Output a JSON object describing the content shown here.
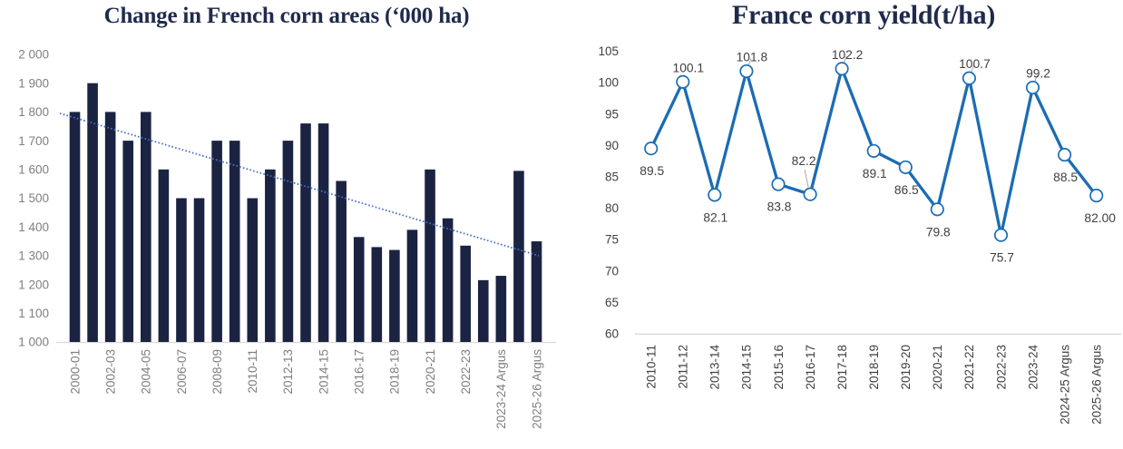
{
  "page": {
    "background": "#ffffff"
  },
  "chart_data": [
    {
      "type": "bar",
      "title": "Change in French corn areas (‘000 ha)",
      "values": [
        1800,
        1900,
        1800,
        1700,
        1800,
        1600,
        1500,
        1500,
        1700,
        1700,
        1500,
        1600,
        1700,
        1760,
        1760,
        1560,
        1365,
        1330,
        1320,
        1390,
        1600,
        1430,
        1335,
        1215,
        1230,
        1595,
        1350
      ],
      "x_tick_labels": [
        "2000-01",
        "2002-03",
        "2004-05",
        "2006-07",
        "2008-09",
        "2010-11",
        "2012-13",
        "2014-15",
        "2016-17",
        "2018-19",
        "2020-21",
        "2022-23",
        "2023-24 Argus",
        "2025-26 Argus"
      ],
      "x_tick_every": 2,
      "ylim": [
        1000,
        2000
      ],
      "ytick_step": 100,
      "y_tick_labels": [
        "2 000",
        "1 900",
        "1 800",
        "1 700",
        "1 600",
        "1 500",
        "1 400",
        "1 300",
        "1 200",
        "1 100",
        "1 000"
      ],
      "bar_color": "#1b2342",
      "axis_color": "#d9d9d9",
      "trendline": {
        "style": "dotted",
        "color": "#4472c4",
        "start_value": 1795,
        "end_value": 1300
      },
      "grid": "off",
      "legend": "none"
    },
    {
      "type": "line",
      "title": "France corn yield(t/ha)",
      "categories": [
        "2010-11",
        "2011-12",
        "2013-14",
        "2014-15",
        "2015-16",
        "2016-17",
        "2017-18",
        "2018-19",
        "2019-20",
        "2020-21",
        "2021-22",
        "2022-23",
        "2023-24",
        "2024-25 Argus",
        "2025-26 Argus"
      ],
      "values": [
        89.5,
        100.1,
        82.1,
        101.8,
        83.8,
        82.2,
        102.2,
        89.1,
        86.5,
        79.8,
        100.7,
        75.7,
        99.2,
        88.5,
        82.0
      ],
      "point_labels": [
        "89.5",
        "100.1",
        "82.1",
        "101.8",
        "83.8",
        "82.2",
        "102.2",
        "89.1",
        "86.5",
        "79.8",
        "100.7",
        "75.7",
        "99.2",
        "88.5",
        "82.00"
      ],
      "label_positions": [
        "below",
        "above",
        "below",
        "above-leader",
        "below",
        "callout-above",
        "above-leader",
        "below",
        "below",
        "below",
        "above-leader",
        "below",
        "above-leader",
        "below",
        "below"
      ],
      "ylim": [
        60,
        105
      ],
      "ytick_step": 5,
      "y_tick_labels": [
        "105",
        "100",
        "95",
        "90",
        "85",
        "80",
        "75",
        "70",
        "65",
        "60"
      ],
      "line_color": "#1b6cb3",
      "marker": "circle-open-white",
      "leader_color": "#a6a6a6",
      "axis_color": "#d9d9d9",
      "grid": "off",
      "legend": "none"
    }
  ]
}
